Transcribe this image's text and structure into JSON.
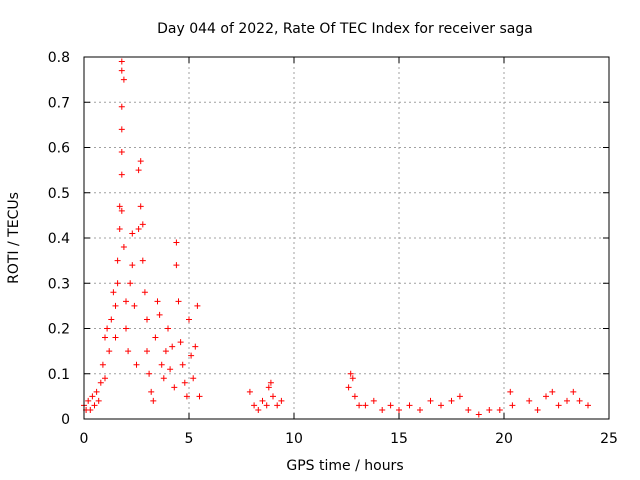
{
  "chart_data": {
    "type": "scatter",
    "title": "Day 044 of 2022, Rate Of TEC Index for receiver saga",
    "xlabel": "GPS time / hours",
    "ylabel": "ROTI / TECUs",
    "xlim": [
      0,
      25
    ],
    "ylim": [
      0,
      0.8
    ],
    "xticks": [
      0,
      5,
      10,
      15,
      20,
      25
    ],
    "yticks": [
      0,
      0.1,
      0.2,
      0.3,
      0.4,
      0.5,
      0.6,
      0.7,
      0.8
    ],
    "xtick_labels": [
      "0",
      "5",
      "10",
      "15",
      "20",
      "25"
    ],
    "ytick_labels": [
      "0",
      "0.1",
      "0.2",
      "0.3",
      "0.4",
      "0.5",
      "0.6",
      "0.7",
      "0.8"
    ],
    "grid": true,
    "marker": "+",
    "color": "#ff0000",
    "series": [
      {
        "name": "ROTI",
        "points": [
          [
            0.0,
            0.03
          ],
          [
            0.1,
            0.02
          ],
          [
            0.2,
            0.04
          ],
          [
            0.3,
            0.02
          ],
          [
            0.4,
            0.05
          ],
          [
            0.5,
            0.03
          ],
          [
            0.6,
            0.06
          ],
          [
            0.7,
            0.04
          ],
          [
            0.8,
            0.08
          ],
          [
            0.9,
            0.12
          ],
          [
            1.0,
            0.18
          ],
          [
            1.0,
            0.09
          ],
          [
            1.1,
            0.2
          ],
          [
            1.2,
            0.15
          ],
          [
            1.3,
            0.22
          ],
          [
            1.4,
            0.28
          ],
          [
            1.5,
            0.25
          ],
          [
            1.5,
            0.18
          ],
          [
            1.6,
            0.35
          ],
          [
            1.6,
            0.3
          ],
          [
            1.7,
            0.42
          ],
          [
            1.7,
            0.47
          ],
          [
            1.8,
            0.79
          ],
          [
            1.8,
            0.77
          ],
          [
            1.8,
            0.69
          ],
          [
            1.8,
            0.64
          ],
          [
            1.8,
            0.59
          ],
          [
            1.8,
            0.54
          ],
          [
            1.8,
            0.46
          ],
          [
            1.9,
            0.75
          ],
          [
            1.9,
            0.38
          ],
          [
            2.0,
            0.26
          ],
          [
            2.0,
            0.2
          ],
          [
            2.1,
            0.15
          ],
          [
            2.2,
            0.3
          ],
          [
            2.3,
            0.41
          ],
          [
            2.3,
            0.34
          ],
          [
            2.4,
            0.25
          ],
          [
            2.5,
            0.12
          ],
          [
            2.6,
            0.55
          ],
          [
            2.6,
            0.42
          ],
          [
            2.7,
            0.57
          ],
          [
            2.7,
            0.47
          ],
          [
            2.8,
            0.43
          ],
          [
            2.8,
            0.35
          ],
          [
            2.9,
            0.28
          ],
          [
            3.0,
            0.22
          ],
          [
            3.0,
            0.15
          ],
          [
            3.1,
            0.1
          ],
          [
            3.2,
            0.06
          ],
          [
            3.3,
            0.04
          ],
          [
            3.4,
            0.18
          ],
          [
            3.5,
            0.26
          ],
          [
            3.6,
            0.23
          ],
          [
            3.7,
            0.12
          ],
          [
            3.8,
            0.09
          ],
          [
            3.9,
            0.15
          ],
          [
            4.0,
            0.2
          ],
          [
            4.1,
            0.11
          ],
          [
            4.2,
            0.16
          ],
          [
            4.3,
            0.07
          ],
          [
            4.4,
            0.39
          ],
          [
            4.4,
            0.34
          ],
          [
            4.5,
            0.26
          ],
          [
            4.6,
            0.17
          ],
          [
            4.7,
            0.12
          ],
          [
            4.8,
            0.08
          ],
          [
            4.9,
            0.05
          ],
          [
            5.0,
            0.22
          ],
          [
            5.1,
            0.14
          ],
          [
            5.2,
            0.09
          ],
          [
            5.3,
            0.16
          ],
          [
            5.4,
            0.25
          ],
          [
            5.5,
            0.05
          ],
          [
            7.9,
            0.06
          ],
          [
            8.1,
            0.03
          ],
          [
            8.3,
            0.02
          ],
          [
            8.5,
            0.04
          ],
          [
            8.7,
            0.03
          ],
          [
            8.8,
            0.07
          ],
          [
            8.9,
            0.08
          ],
          [
            9.0,
            0.05
          ],
          [
            9.2,
            0.03
          ],
          [
            9.4,
            0.04
          ],
          [
            12.6,
            0.07
          ],
          [
            12.7,
            0.1
          ],
          [
            12.8,
            0.09
          ],
          [
            12.9,
            0.05
          ],
          [
            13.1,
            0.03
          ],
          [
            13.4,
            0.03
          ],
          [
            13.8,
            0.04
          ],
          [
            14.2,
            0.02
          ],
          [
            14.6,
            0.03
          ],
          [
            15.0,
            0.02
          ],
          [
            15.5,
            0.03
          ],
          [
            16.0,
            0.02
          ],
          [
            16.5,
            0.04
          ],
          [
            17.0,
            0.03
          ],
          [
            17.5,
            0.04
          ],
          [
            17.9,
            0.05
          ],
          [
            18.3,
            0.02
          ],
          [
            18.8,
            0.01
          ],
          [
            19.3,
            0.02
          ],
          [
            19.8,
            0.02
          ],
          [
            20.3,
            0.06
          ],
          [
            20.4,
            0.03
          ],
          [
            21.2,
            0.04
          ],
          [
            21.6,
            0.02
          ],
          [
            22.0,
            0.05
          ],
          [
            22.3,
            0.06
          ],
          [
            22.6,
            0.03
          ],
          [
            23.0,
            0.04
          ],
          [
            23.3,
            0.06
          ],
          [
            23.6,
            0.04
          ],
          [
            24.0,
            0.03
          ]
        ]
      }
    ]
  }
}
